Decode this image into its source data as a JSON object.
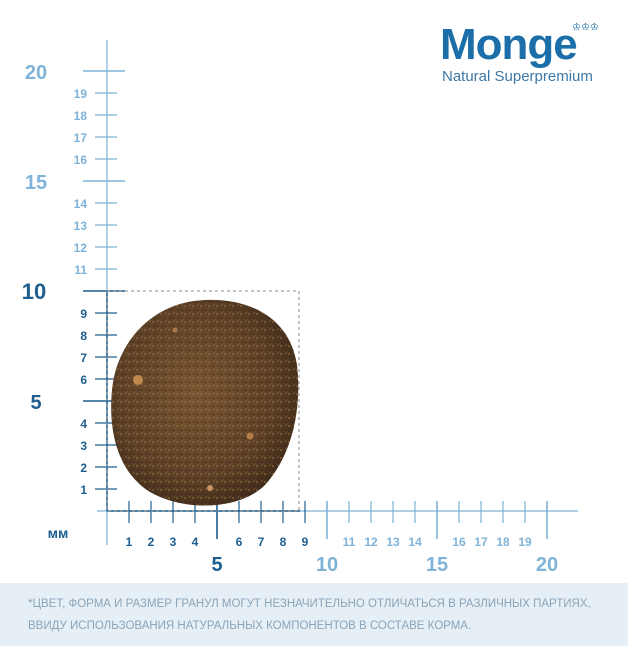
{
  "brand": {
    "name": "Monge",
    "tagline": "Natural Superpremium",
    "color": "#1b6ea8"
  },
  "scale": {
    "unit_label": "мм",
    "y_major_labels": [
      "5",
      "10",
      "15",
      "20"
    ],
    "y_minor_labels": [
      "1",
      "2",
      "3",
      "4",
      "6",
      "7",
      "8",
      "9",
      "11",
      "12",
      "13",
      "14",
      "16",
      "17",
      "18",
      "19"
    ],
    "x_major_labels": [
      "5",
      "10",
      "15",
      "20"
    ],
    "x_minor_labels": [
      "1",
      "2",
      "3",
      "4",
      "6",
      "7",
      "8",
      "9",
      "11",
      "12",
      "13",
      "14",
      "16",
      "17",
      "18",
      "19"
    ],
    "max_mm": 20,
    "ruler_color_dark": "#1d5e8f",
    "ruler_color_light": "#7fb3d8"
  },
  "kibble": {
    "width_mm": 9,
    "height_mm": 10,
    "color": "#6b4a2b"
  },
  "footer": {
    "note": "*Цвет, форма и размер гранул могут незначительно отличаться в различных партиях, ввиду использования натуральных компонентов в составе корма.",
    "background": "#e7eff6"
  }
}
